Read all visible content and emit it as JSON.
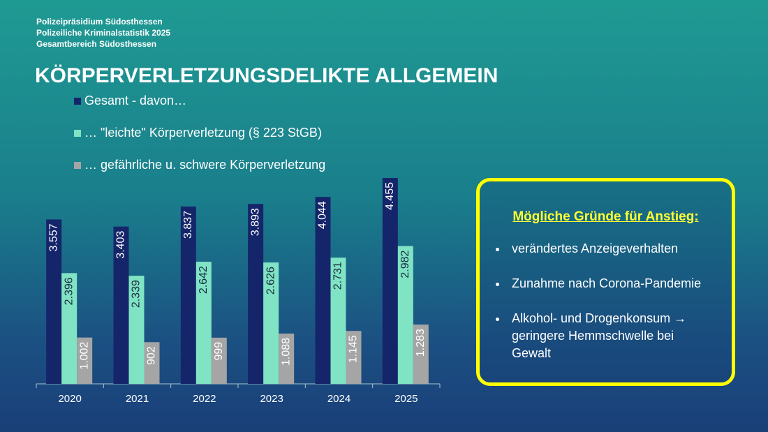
{
  "header": {
    "lines": [
      "Polizeipräsidium Südosthessen",
      "Polizeiliche Kriminalstatistik 2025",
      "Gesamtbereich Südosthessen"
    ],
    "title": "KÖRPERVERLETZUNGSDELIKTE  ALLGEMEIN"
  },
  "chart_data": {
    "type": "bar",
    "categories": [
      "2020",
      "2021",
      "2022",
      "2023",
      "2024",
      "2025"
    ],
    "series": [
      {
        "name": "Gesamt - davon…",
        "color": "#15256a",
        "values": [
          3557,
          3403,
          3837,
          3893,
          4044,
          4455
        ],
        "value_labels": [
          "3.557",
          "3.403",
          "3.837",
          "3.893",
          "4.044",
          "4.455"
        ]
      },
      {
        "name": "… \"leichte\" Körperverletzung (§ 223 StGB)",
        "color": "#7fe3c4",
        "values": [
          2396,
          2339,
          2642,
          2626,
          2731,
          2982
        ],
        "value_labels": [
          "2.396",
          "2.339",
          "2.642",
          "2.626",
          "2.731",
          "2.982"
        ]
      },
      {
        "name": "… gefährliche u. schwere Körperverletzung",
        "color": "#a5a5a5",
        "values": [
          1002,
          902,
          999,
          1088,
          1145,
          1283
        ],
        "value_labels": [
          "1.002",
          "902",
          "999",
          "1.088",
          "1.145",
          "1.283"
        ]
      }
    ]
  },
  "box": {
    "heading": "Mögliche Gründe für Anstieg:",
    "items": [
      "verändertes Anzeigeverhalten",
      "Zunahme nach Corona-Pandemie",
      "Alkohol- und Drogenkonsum → geringere Hemmschwelle bei Gewalt"
    ]
  }
}
